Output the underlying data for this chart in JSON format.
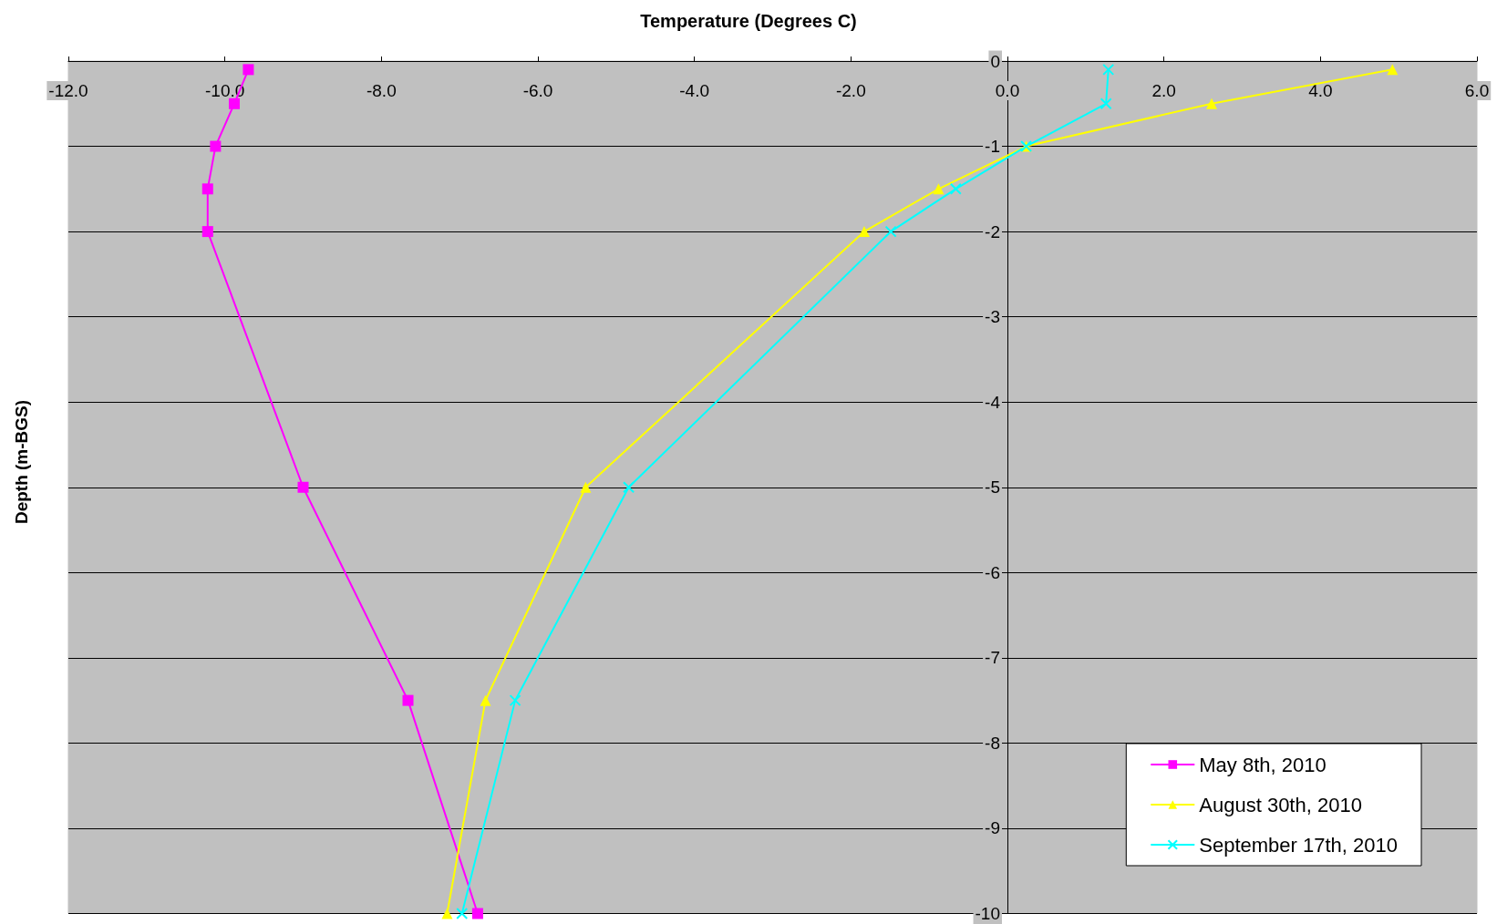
{
  "chart_data": {
    "type": "line",
    "xlabel": "Temperature (Degrees C)",
    "ylabel": "Depth (m-BGS)",
    "xlim": [
      -12,
      6
    ],
    "xticks": [
      {
        "value": -12,
        "label": "-12.0"
      },
      {
        "value": -10,
        "label": "-10.0"
      },
      {
        "value": -8,
        "label": "-8.0"
      },
      {
        "value": -6,
        "label": "-6.0"
      },
      {
        "value": -4,
        "label": "-4.0"
      },
      {
        "value": -2,
        "label": "-2.0"
      },
      {
        "value": 0,
        "label": "0.0"
      },
      {
        "value": 2,
        "label": "2.0"
      },
      {
        "value": 4,
        "label": "4.0"
      },
      {
        "value": 6,
        "label": "6.0"
      }
    ],
    "ylim": [
      -10,
      0
    ],
    "yticks": [
      0,
      -1,
      -2,
      -3,
      -4,
      -5,
      -6,
      -7,
      -8,
      -9,
      -10
    ],
    "grid": "y",
    "legend": "bottom right",
    "line_style": "solid",
    "series": [
      {
        "name": "May 8th, 2010",
        "color": "#ff00ff",
        "marker": "square",
        "x": [
          -9.7,
          -9.88,
          -10.12,
          -10.22,
          -10.22,
          -9.0,
          -7.66,
          -6.77
        ],
        "values": [
          -0.1,
          -0.5,
          -1,
          -1.5,
          -2,
          -5,
          -7.5,
          -10
        ]
      },
      {
        "name": "August 30th, 2010",
        "color": "#ffff00",
        "marker": "triangle",
        "x": [
          4.92,
          2.61,
          0.24,
          -0.88,
          -1.83,
          -5.39,
          -6.67,
          -7.16
        ],
        "values": [
          -0.1,
          -0.5,
          -1,
          -1.5,
          -2,
          -5,
          -7.5,
          -10
        ]
      },
      {
        "name": "September 17th, 2010",
        "color": "#00ffff",
        "marker": "cross",
        "x": [
          1.29,
          1.26,
          0.24,
          -0.66,
          -1.49,
          -4.84,
          -6.29,
          -6.97
        ],
        "values": [
          -0.1,
          -0.5,
          -1,
          -1.5,
          -2,
          -5,
          -7.5,
          -10
        ]
      }
    ]
  }
}
